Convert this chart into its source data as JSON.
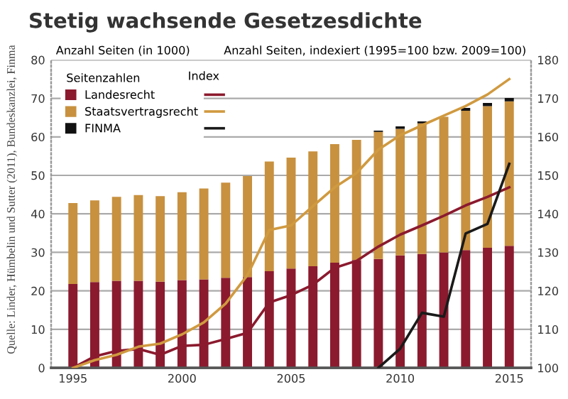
{
  "chart_data": {
    "type": "bar",
    "title": "Stetig wachsende Gesetzesdichte",
    "ylabel": "Anzahl Seiten (in 1000)",
    "y2label": "Anzahl Seiten, indexiert (1995=100 bzw. 2009=100)",
    "legend_title": "Seitenzahlen",
    "annotations": [
      "Index",
      "Quelle: Linder, Hümbelin und Sutter (2011), Bundeskanzlei, Finma"
    ],
    "x": [
      1995,
      1996,
      1997,
      1998,
      1999,
      2000,
      2001,
      2002,
      2003,
      2004,
      2005,
      2006,
      2007,
      2008,
      2009,
      2010,
      2011,
      2012,
      2013,
      2014,
      2015
    ],
    "stacked": true,
    "series": [
      {
        "name": "Landesrecht",
        "color": "#8b1a2e",
        "values": [
          21.8,
          22.3,
          22.6,
          22.6,
          22.4,
          22.8,
          23.0,
          23.4,
          23.6,
          25.1,
          25.8,
          26.4,
          27.3,
          28.0,
          28.3,
          29.2,
          29.6,
          30.0,
          30.6,
          31.2,
          31.7
        ]
      },
      {
        "name": "Staatsvertragsrecht",
        "color": "#c8913f",
        "values": [
          21.0,
          21.2,
          21.8,
          22.3,
          22.2,
          22.8,
          23.6,
          24.7,
          26.2,
          28.5,
          28.8,
          29.8,
          30.8,
          31.2,
          33.0,
          32.9,
          33.9,
          35.2,
          36.2,
          36.8,
          37.5
        ]
      },
      {
        "name": "FINMA",
        "color": "#111111",
        "values": [
          null,
          null,
          null,
          null,
          null,
          null,
          null,
          null,
          null,
          null,
          null,
          null,
          null,
          null,
          0.3,
          0.6,
          0.5,
          null,
          0.7,
          0.8,
          0.9
        ]
      },
      {
        "type": "line",
        "axis": "y2",
        "color": "#8b1a2e",
        "values": [
          100,
          103,
          104.4,
          104.9,
          103.4,
          105.7,
          106,
          107.5,
          109.1,
          117,
          118.9,
          121.6,
          126,
          127.8,
          131.5,
          134.6,
          137,
          139.5,
          142.2,
          144.4,
          146.9
        ]
      },
      {
        "type": "line",
        "axis": "y2",
        "color": "#d09a40",
        "values": [
          100,
          102,
          103.4,
          105.5,
          106.3,
          108.7,
          111.8,
          116.7,
          124.1,
          135.8,
          137,
          142,
          146.9,
          150.6,
          156.7,
          160.4,
          163,
          165.5,
          168,
          171,
          175
        ]
      },
      {
        "type": "line",
        "axis": "y2",
        "color": "#1a1a1a",
        "values": [
          null,
          null,
          null,
          null,
          null,
          null,
          null,
          null,
          null,
          null,
          null,
          null,
          null,
          null,
          100,
          105,
          114.3,
          113.3,
          134.9,
          137.4,
          153
        ]
      }
    ],
    "xlim": [
      1994,
      2016
    ],
    "xticks": [
      1995,
      2000,
      2005,
      2010,
      2015
    ],
    "ylim": [
      0,
      80
    ],
    "yticks": [
      0,
      10,
      20,
      30,
      40,
      50,
      60,
      70,
      80
    ],
    "y2lim": [
      100,
      180
    ],
    "y2ticks": [
      100,
      110,
      120,
      130,
      140,
      150,
      160,
      170,
      180
    ],
    "grid": "y",
    "legend": "top left"
  }
}
